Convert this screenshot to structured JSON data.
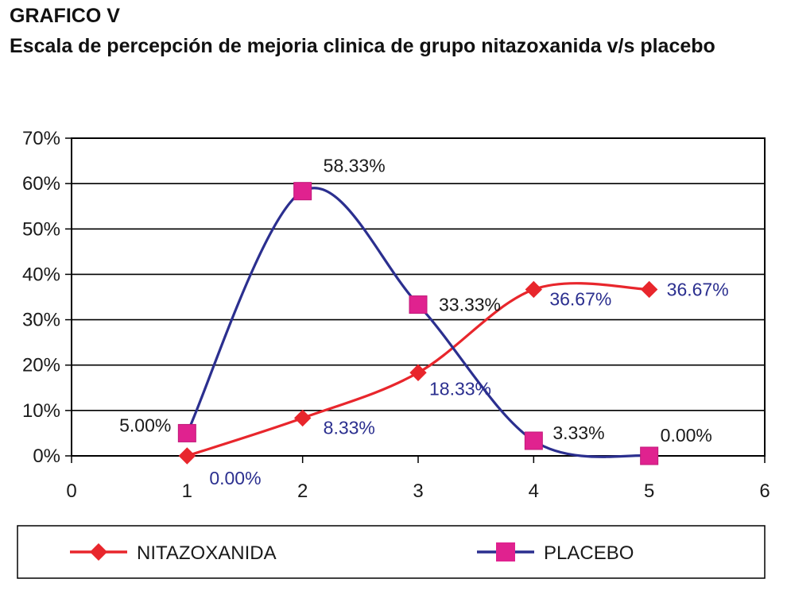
{
  "chart_data": {
    "type": "line",
    "title": "GRAFICO V",
    "subtitle": "Escala de percepción de mejoria clinica de grupo nitazoxanida v/s placebo",
    "xlabel": "",
    "ylabel": "",
    "xlim": [
      0,
      6
    ],
    "ylim": [
      0,
      0.7
    ],
    "xticks": [
      "0",
      "1",
      "2",
      "3",
      "4",
      "5",
      "6"
    ],
    "yticks": [
      "0%",
      "10%",
      "20%",
      "30%",
      "40%",
      "50%",
      "60%",
      "70%"
    ],
    "grid": true,
    "smooth": true,
    "legend_position": "bottom",
    "series": [
      {
        "name": "NITAZOXANIDA",
        "color": "#e8262c",
        "marker": "diamond",
        "x": [
          1,
          2,
          3,
          4,
          5
        ],
        "y": [
          0.0,
          0.0833,
          0.1833,
          0.3667,
          0.3667
        ],
        "labels": [
          "0.00%",
          "8.33%",
          "18.33%",
          "36.67%",
          "36.67%"
        ]
      },
      {
        "name": "PLACEBO",
        "color": "#2b2f8f",
        "marker": "square",
        "marker_color": "#e0228f",
        "x": [
          1,
          2,
          3,
          4,
          5
        ],
        "y": [
          0.05,
          0.5833,
          0.3333,
          0.0333,
          0.0
        ],
        "labels": [
          "5.00%",
          "58.33%",
          "33.33%",
          "3.33%",
          "0.00%"
        ]
      }
    ]
  }
}
